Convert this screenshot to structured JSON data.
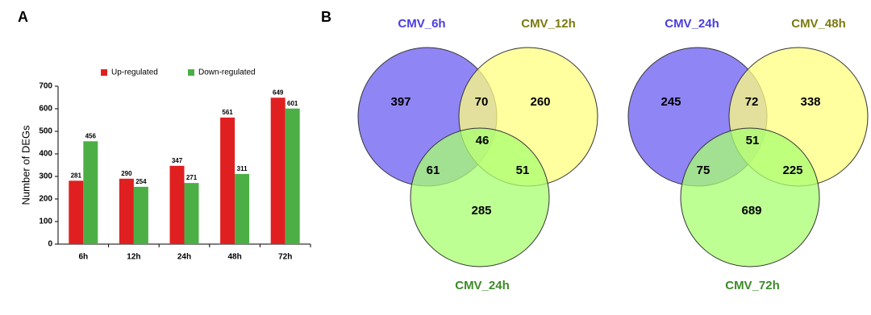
{
  "panel_labels": [
    "A",
    "B"
  ],
  "chart_data": [
    {
      "type": "bar",
      "ylabel": "Number of DEGs",
      "categories": [
        "6h",
        "12h",
        "24h",
        "48h",
        "72h"
      ],
      "series": [
        {
          "name": "Up-regulated",
          "color": "#e02020",
          "values": [
            281,
            290,
            347,
            561,
            649
          ]
        },
        {
          "name": "Down-regulated",
          "color": "#4caf45",
          "values": [
            456,
            254,
            271,
            311,
            601
          ]
        }
      ],
      "ylim": [
        0,
        700
      ],
      "yticks": [
        0,
        100,
        200,
        300,
        400,
        500,
        600,
        700
      ],
      "legend": "top"
    },
    {
      "type": "venn",
      "sets": [
        {
          "name": "CMV_6h",
          "color": "#6b5cf2",
          "label_color": "#4a3de0"
        },
        {
          "name": "CMV_12h",
          "color": "#ffff80",
          "label_color": "#7a7a10"
        },
        {
          "name": "CMV_24h",
          "color": "#a8ff70",
          "label_color": "#3d8a2a"
        }
      ],
      "values": [
        397,
        260,
        285,
        70,
        61,
        51,
        46
      ]
    },
    {
      "type": "venn",
      "sets": [
        {
          "name": "CMV_24h",
          "color": "#6b5cf2",
          "label_color": "#4a3de0"
        },
        {
          "name": "CMV_48h",
          "color": "#ffff80",
          "label_color": "#7a7a10"
        },
        {
          "name": "CMV_72h",
          "color": "#a8ff70",
          "label_color": "#3d8a2a"
        }
      ],
      "values": [
        245,
        338,
        689,
        72,
        75,
        225,
        51
      ]
    }
  ]
}
